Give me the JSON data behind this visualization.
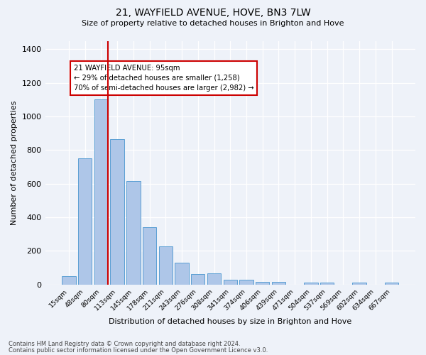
{
  "title": "21, WAYFIELD AVENUE, HOVE, BN3 7LW",
  "subtitle": "Size of property relative to detached houses in Brighton and Hove",
  "xlabel": "Distribution of detached houses by size in Brighton and Hove",
  "ylabel": "Number of detached properties",
  "footnote1": "Contains HM Land Registry data © Crown copyright and database right 2024.",
  "footnote2": "Contains public sector information licensed under the Open Government Licence v3.0.",
  "annotation_line1": "21 WAYFIELD AVENUE: 95sqm",
  "annotation_line2": "← 29% of detached houses are smaller (1,258)",
  "annotation_line3": "70% of semi-detached houses are larger (2,982) →",
  "bar_labels": [
    "15sqm",
    "48sqm",
    "80sqm",
    "113sqm",
    "145sqm",
    "178sqm",
    "211sqm",
    "243sqm",
    "276sqm",
    "308sqm",
    "341sqm",
    "374sqm",
    "406sqm",
    "439sqm",
    "471sqm",
    "504sqm",
    "537sqm",
    "569sqm",
    "602sqm",
    "634sqm",
    "667sqm"
  ],
  "bar_values": [
    48,
    750,
    1100,
    865,
    615,
    340,
    228,
    130,
    63,
    68,
    28,
    28,
    18,
    15,
    0,
    10,
    10,
    0,
    10,
    0,
    10
  ],
  "bar_color": "#aec6e8",
  "bar_edge_color": "#5a9fd4",
  "red_line_color": "#cc0000",
  "annotation_box_color": "#cc0000",
  "background_color": "#eef2f9",
  "ylim": [
    0,
    1450
  ],
  "yticks": [
    0,
    200,
    400,
    600,
    800,
    1000,
    1200,
    1400
  ],
  "red_line_x": 2.42
}
